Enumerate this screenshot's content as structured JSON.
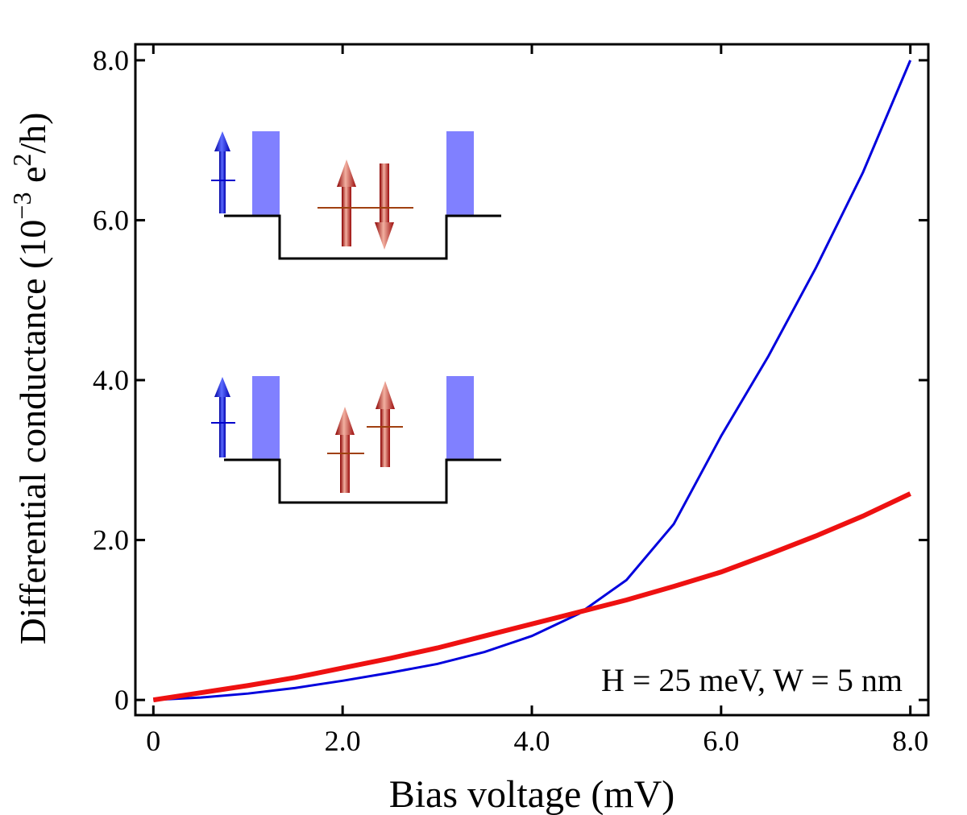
{
  "chart_data": {
    "type": "line",
    "xlabel": "Bias voltage  (mV)",
    "ylabel": [
      "Differential conductance (10",
      "−3",
      " e",
      "2",
      "/h)"
    ],
    "annotation": "H = 25 meV, W = 5 nm",
    "x": [
      0,
      0.5,
      1,
      1.5,
      2,
      2.5,
      3,
      3.5,
      4,
      4.5,
      5,
      5.5,
      6,
      6.5,
      7,
      7.5,
      8
    ],
    "series": [
      {
        "color": "#0000dd",
        "values": [
          0,
          0.03,
          0.08,
          0.15,
          0.24,
          0.34,
          0.45,
          0.6,
          0.8,
          1.08,
          1.5,
          2.2,
          3.3,
          4.3,
          5.4,
          6.6,
          8.0
        ]
      },
      {
        "color": "#ee1111",
        "values": [
          0,
          0.09,
          0.18,
          0.28,
          0.4,
          0.52,
          0.65,
          0.8,
          0.95,
          1.1,
          1.25,
          1.42,
          1.6,
          1.82,
          2.05,
          2.3,
          2.58
        ]
      }
    ],
    "xlim": [
      -0.19,
      8.19
    ],
    "ylim": [
      -0.19,
      8.2
    ],
    "xticks": [
      0,
      {
        "value": 2,
        "label": "2.0"
      },
      {
        "value": 4,
        "label": "4.0"
      },
      {
        "value": 6,
        "label": "6.0"
      },
      {
        "value": 8,
        "label": "8.0"
      }
    ],
    "yticks": [
      0,
      {
        "value": 2,
        "label": "2.0"
      },
      {
        "value": 4,
        "label": "4.0"
      },
      {
        "value": 6,
        "label": "6.0"
      },
      {
        "value": 8,
        "label": "8.0"
      }
    ]
  }
}
